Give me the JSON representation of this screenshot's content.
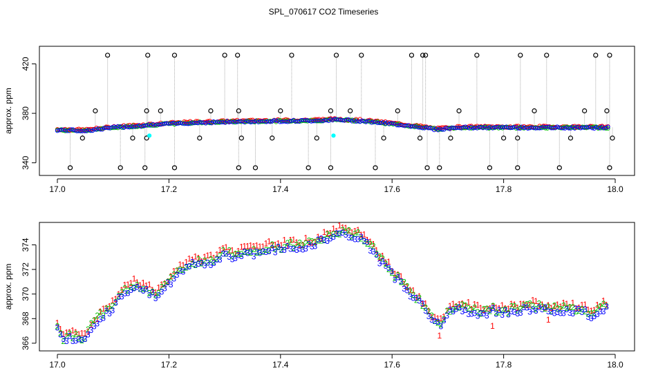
{
  "page": {
    "title": "SPL_070617  CO2 Timeseries"
  },
  "colors": {
    "series1": "#ff0000",
    "series2": "#00c000",
    "series3": "#0000ff",
    "cyan": "#00ffff",
    "outlier": "#000000",
    "spike_line": "#aaaaaa"
  },
  "chart_data": [
    {
      "type": "scatter",
      "title": "SPL_070617  CO2 Timeseries",
      "xlabel": "",
      "ylabel": "approx. ppm",
      "xlim": [
        17.0,
        18.0
      ],
      "ylim": [
        332,
        432
      ],
      "xticks": [
        "17.0",
        "17.2",
        "17.4",
        "17.6",
        "17.8",
        "18.0"
      ],
      "yticks": [
        "340",
        "380",
        "420"
      ],
      "grid": false,
      "baseline": [
        [
          17.0,
          366.5
        ],
        [
          17.05,
          366.0
        ],
        [
          17.1,
          368.5
        ],
        [
          17.15,
          370
        ],
        [
          17.2,
          371.5
        ],
        [
          17.25,
          372.5
        ],
        [
          17.3,
          373.0
        ],
        [
          17.35,
          373.5
        ],
        [
          17.4,
          373.8
        ],
        [
          17.45,
          374.0
        ],
        [
          17.5,
          374.8
        ],
        [
          17.55,
          373.8
        ],
        [
          17.6,
          371.5
        ],
        [
          17.65,
          369.0
        ],
        [
          17.68,
          367.0
        ],
        [
          17.72,
          368.5
        ],
        [
          17.8,
          368.5
        ],
        [
          17.9,
          368.5
        ],
        [
          17.99,
          368.5
        ]
      ],
      "outliers_low": [
        17.023,
        17.113,
        17.157,
        17.21,
        17.325,
        17.355,
        17.45,
        17.49,
        17.57,
        17.663,
        17.685,
        17.775,
        17.825,
        17.9,
        17.99
      ],
      "outliers_high": [
        17.09,
        17.162,
        17.21,
        17.3,
        17.323,
        17.42,
        17.5,
        17.545,
        17.635,
        17.655,
        17.66,
        17.752,
        17.83,
        17.877,
        17.965,
        17.99
      ],
      "outliers_mid": [
        17.068,
        17.16,
        17.185,
        17.275,
        17.325,
        17.4,
        17.49,
        17.525,
        17.61,
        17.72,
        17.855,
        17.945,
        17.985
      ],
      "outliers_lowmid": [
        17.045,
        17.135,
        17.16,
        17.255,
        17.33,
        17.385,
        17.465,
        17.585,
        17.65,
        17.705,
        17.8,
        17.825,
        17.92,
        17.995
      ],
      "cyan_points": [
        [
          17.165,
          362
        ],
        [
          17.495,
          362
        ]
      ]
    },
    {
      "type": "scatter",
      "xlabel": "",
      "ylabel": "approx. ppm",
      "xlim": [
        17.0,
        18.0
      ],
      "ylim": [
        365.6,
        375.6
      ],
      "xticks": [
        "17.0",
        "17.2",
        "17.4",
        "17.6",
        "17.8",
        "18.0"
      ],
      "yticks": [
        "366",
        "368",
        "370",
        "372",
        "374"
      ],
      "grid": false,
      "series": [
        {
          "name": "1",
          "offset": 0.45
        },
        {
          "name": "2",
          "offset": 0.2
        },
        {
          "name": "3",
          "offset": 0.0
        }
      ],
      "baseline": [
        [
          17.0,
          367.0
        ],
        [
          17.01,
          366.2
        ],
        [
          17.03,
          366.4
        ],
        [
          17.05,
          366.2
        ],
        [
          17.06,
          367.2
        ],
        [
          17.08,
          368.2
        ],
        [
          17.1,
          368.8
        ],
        [
          17.12,
          370.2
        ],
        [
          17.14,
          370.6
        ],
        [
          17.16,
          370.2
        ],
        [
          17.18,
          369.8
        ],
        [
          17.2,
          370.8
        ],
        [
          17.22,
          371.8
        ],
        [
          17.24,
          372.4
        ],
        [
          17.26,
          372.4
        ],
        [
          17.28,
          372.6
        ],
        [
          17.3,
          373.2
        ],
        [
          17.32,
          373.0
        ],
        [
          17.34,
          373.4
        ],
        [
          17.36,
          373.2
        ],
        [
          17.38,
          373.6
        ],
        [
          17.4,
          373.6
        ],
        [
          17.42,
          373.8
        ],
        [
          17.44,
          373.8
        ],
        [
          17.46,
          374.0
        ],
        [
          17.48,
          374.4
        ],
        [
          17.5,
          374.9
        ],
        [
          17.52,
          374.8
        ],
        [
          17.54,
          374.6
        ],
        [
          17.56,
          373.8
        ],
        [
          17.58,
          372.6
        ],
        [
          17.6,
          371.6
        ],
        [
          17.62,
          370.6
        ],
        [
          17.64,
          369.6
        ],
        [
          17.66,
          368.8
        ],
        [
          17.67,
          367.8
        ],
        [
          17.68,
          367.6
        ],
        [
          17.69,
          367.4
        ],
        [
          17.7,
          368.4
        ],
        [
          17.72,
          368.8
        ],
        [
          17.74,
          368.6
        ],
        [
          17.76,
          368.4
        ],
        [
          17.78,
          368.6
        ],
        [
          17.8,
          368.4
        ],
        [
          17.82,
          368.6
        ],
        [
          17.84,
          368.8
        ],
        [
          17.86,
          368.8
        ],
        [
          17.88,
          368.6
        ],
        [
          17.9,
          368.6
        ],
        [
          17.92,
          368.6
        ],
        [
          17.94,
          368.6
        ],
        [
          17.96,
          368.2
        ],
        [
          17.98,
          368.8
        ]
      ]
    }
  ]
}
